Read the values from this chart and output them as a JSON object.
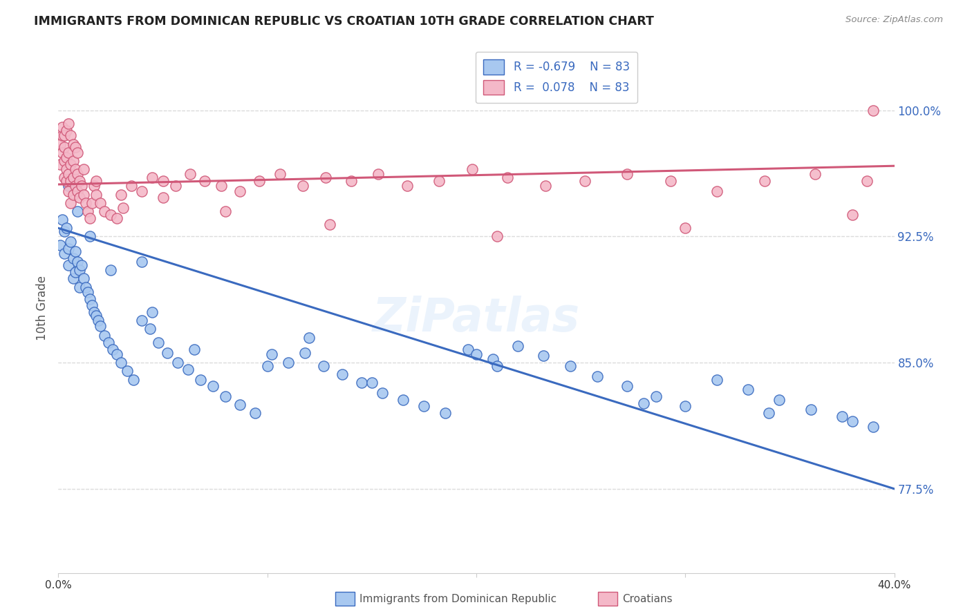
{
  "title": "IMMIGRANTS FROM DOMINICAN REPUBLIC VS CROATIAN 10TH GRADE CORRELATION CHART",
  "source": "Source: ZipAtlas.com",
  "ylabel": "10th Grade",
  "ytick_labels": [
    "77.5%",
    "85.0%",
    "92.5%",
    "100.0%"
  ],
  "ytick_values": [
    0.775,
    0.85,
    0.925,
    1.0
  ],
  "legend_blue_r": "R = -0.679",
  "legend_blue_n": "N = 83",
  "legend_pink_r": "R =  0.078",
  "legend_pink_n": "N = 83",
  "legend_label_blue": "Immigrants from Dominican Republic",
  "legend_label_pink": "Croatians",
  "blue_color": "#a8c8f0",
  "pink_color": "#f4b8c8",
  "blue_line_color": "#3a6abf",
  "pink_line_color": "#d05878",
  "watermark": "ZiPatlas",
  "xmin": 0.0,
  "xmax": 0.4,
  "ymin": 0.725,
  "ymax": 1.04,
  "blue_scatter_x": [
    0.001,
    0.002,
    0.003,
    0.003,
    0.004,
    0.005,
    0.005,
    0.006,
    0.007,
    0.007,
    0.008,
    0.008,
    0.009,
    0.01,
    0.01,
    0.011,
    0.012,
    0.013,
    0.014,
    0.015,
    0.016,
    0.017,
    0.018,
    0.019,
    0.02,
    0.022,
    0.024,
    0.026,
    0.028,
    0.03,
    0.033,
    0.036,
    0.04,
    0.044,
    0.048,
    0.052,
    0.057,
    0.062,
    0.068,
    0.074,
    0.08,
    0.087,
    0.094,
    0.102,
    0.11,
    0.118,
    0.127,
    0.136,
    0.145,
    0.155,
    0.165,
    0.175,
    0.185,
    0.196,
    0.208,
    0.22,
    0.232,
    0.245,
    0.258,
    0.272,
    0.286,
    0.3,
    0.315,
    0.33,
    0.345,
    0.36,
    0.375,
    0.39,
    0.005,
    0.009,
    0.015,
    0.025,
    0.04,
    0.065,
    0.1,
    0.15,
    0.21,
    0.28,
    0.34,
    0.38,
    0.045,
    0.12,
    0.2
  ],
  "blue_scatter_y": [
    0.92,
    0.935,
    0.928,
    0.915,
    0.93,
    0.918,
    0.908,
    0.922,
    0.912,
    0.9,
    0.916,
    0.904,
    0.91,
    0.905,
    0.895,
    0.908,
    0.9,
    0.895,
    0.892,
    0.888,
    0.884,
    0.88,
    0.878,
    0.875,
    0.872,
    0.866,
    0.862,
    0.858,
    0.855,
    0.85,
    0.845,
    0.84,
    0.91,
    0.87,
    0.862,
    0.856,
    0.85,
    0.846,
    0.84,
    0.836,
    0.83,
    0.825,
    0.82,
    0.855,
    0.85,
    0.856,
    0.848,
    0.843,
    0.838,
    0.832,
    0.828,
    0.824,
    0.82,
    0.858,
    0.852,
    0.86,
    0.854,
    0.848,
    0.842,
    0.836,
    0.83,
    0.824,
    0.84,
    0.834,
    0.828,
    0.822,
    0.818,
    0.812,
    0.955,
    0.94,
    0.925,
    0.905,
    0.875,
    0.858,
    0.848,
    0.838,
    0.848,
    0.826,
    0.82,
    0.815,
    0.88,
    0.865,
    0.855
  ],
  "pink_scatter_x": [
    0.001,
    0.001,
    0.002,
    0.002,
    0.003,
    0.003,
    0.003,
    0.004,
    0.004,
    0.004,
    0.005,
    0.005,
    0.005,
    0.006,
    0.006,
    0.006,
    0.007,
    0.007,
    0.007,
    0.008,
    0.008,
    0.009,
    0.009,
    0.01,
    0.01,
    0.011,
    0.012,
    0.013,
    0.014,
    0.015,
    0.016,
    0.017,
    0.018,
    0.02,
    0.022,
    0.025,
    0.028,
    0.031,
    0.035,
    0.04,
    0.045,
    0.05,
    0.056,
    0.063,
    0.07,
    0.078,
    0.087,
    0.096,
    0.106,
    0.117,
    0.128,
    0.14,
    0.153,
    0.167,
    0.182,
    0.198,
    0.215,
    0.233,
    0.252,
    0.272,
    0.293,
    0.315,
    0.338,
    0.362,
    0.387,
    0.002,
    0.003,
    0.004,
    0.005,
    0.006,
    0.007,
    0.008,
    0.009,
    0.012,
    0.018,
    0.03,
    0.05,
    0.08,
    0.13,
    0.21,
    0.3,
    0.38,
    0.39
  ],
  "pink_scatter_y": [
    0.98,
    0.968,
    0.975,
    0.985,
    0.978,
    0.96,
    0.97,
    0.965,
    0.972,
    0.958,
    0.975,
    0.962,
    0.952,
    0.968,
    0.958,
    0.945,
    0.97,
    0.96,
    0.95,
    0.965,
    0.955,
    0.962,
    0.952,
    0.958,
    0.948,
    0.955,
    0.95,
    0.945,
    0.94,
    0.936,
    0.945,
    0.955,
    0.95,
    0.945,
    0.94,
    0.938,
    0.936,
    0.942,
    0.955,
    0.952,
    0.96,
    0.958,
    0.955,
    0.962,
    0.958,
    0.955,
    0.952,
    0.958,
    0.962,
    0.955,
    0.96,
    0.958,
    0.962,
    0.955,
    0.958,
    0.965,
    0.96,
    0.955,
    0.958,
    0.962,
    0.958,
    0.952,
    0.958,
    0.962,
    0.958,
    0.99,
    0.985,
    0.988,
    0.992,
    0.985,
    0.98,
    0.978,
    0.975,
    0.965,
    0.958,
    0.95,
    0.948,
    0.94,
    0.932,
    0.925,
    0.93,
    0.938,
    1.0
  ],
  "blue_trend_x": [
    0.0,
    0.4
  ],
  "blue_trend_y": [
    0.93,
    0.775
  ],
  "pink_trend_x": [
    0.0,
    0.4
  ],
  "pink_trend_y": [
    0.956,
    0.967
  ],
  "grid_color": "#dddddd",
  "background_color": "#ffffff",
  "tick_color": "#333333",
  "label_color": "#555555"
}
